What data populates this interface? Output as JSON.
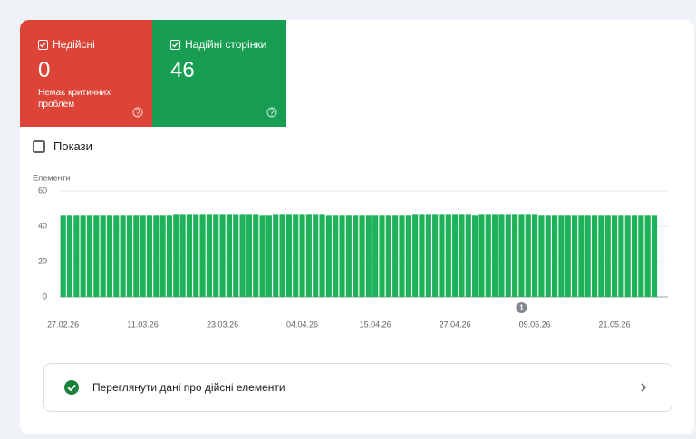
{
  "cards": [
    {
      "label": "Недійсні",
      "value": 0,
      "note": "Немає критичних проблем"
    },
    {
      "label": "Надійні сторінки",
      "value": 46
    }
  ],
  "toggle": {
    "label": "Покази"
  },
  "chart_data": {
    "type": "bar",
    "y_label": "Елементи",
    "color": "#20b25a",
    "categories": [
      "27.02.26",
      null,
      null,
      null,
      null,
      null,
      null,
      null,
      null,
      null,
      null,
      null,
      "11.03.26",
      null,
      null,
      null,
      null,
      null,
      null,
      null,
      null,
      null,
      null,
      null,
      "23.03.26",
      null,
      null,
      null,
      null,
      null,
      null,
      null,
      null,
      null,
      null,
      null,
      "04.04.26",
      null,
      null,
      null,
      null,
      null,
      null,
      null,
      null,
      null,
      null,
      "15.04.26",
      null,
      null,
      null,
      null,
      null,
      null,
      null,
      null,
      null,
      null,
      null,
      "27.04.26",
      null,
      null,
      null,
      null,
      null,
      null,
      null,
      null,
      null,
      null,
      null,
      "09.05.26",
      null,
      null,
      null,
      null,
      null,
      null,
      null,
      null,
      null,
      null,
      null,
      "21.05.26",
      null,
      null,
      null,
      null,
      null,
      null
    ],
    "values": [
      46,
      46,
      46,
      46,
      46,
      46,
      46,
      46,
      46,
      46,
      46,
      46,
      46,
      46,
      46,
      46,
      46,
      47,
      47,
      47,
      47,
      47,
      47,
      47,
      47,
      47,
      47,
      47,
      47,
      47,
      46,
      46,
      47,
      47,
      47,
      47,
      47,
      47,
      47,
      47,
      46,
      46,
      46,
      46,
      46,
      46,
      46,
      46,
      46,
      46,
      46,
      46,
      46,
      47,
      47,
      47,
      47,
      47,
      47,
      47,
      47,
      47,
      46,
      47,
      47,
      47,
      47,
      47,
      47,
      47,
      47,
      47,
      46,
      46,
      46,
      46,
      46,
      46,
      46,
      46,
      46,
      46,
      46,
      46,
      46,
      46,
      46,
      46,
      46,
      46
    ],
    "ylim": [
      0,
      60
    ],
    "yticks": [
      0,
      20,
      40,
      60
    ],
    "grid": true,
    "annotations": [
      {
        "index": 69,
        "label": "1"
      }
    ]
  },
  "link": {
    "label": "Переглянути дані про дійсні елементи"
  }
}
